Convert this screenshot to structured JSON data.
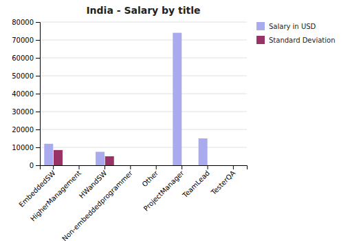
{
  "chart_data": {
    "type": "bar",
    "title": "India - Salary by title",
    "categories": [
      "EmbeddedSW",
      "HigherManagement",
      "HWandSW",
      "Non-embeddedprogrammer",
      "Other",
      "ProjectManager",
      "TeamLead",
      "TesterQA"
    ],
    "series": [
      {
        "name": "Salary in USD",
        "color": "#aaaaee",
        "values": [
          12000,
          0,
          7500,
          0,
          0,
          74000,
          15000,
          0
        ]
      },
      {
        "name": "Standard Deviation",
        "color": "#993366",
        "values": [
          8500,
          0,
          5000,
          0,
          0,
          0,
          0,
          0
        ]
      }
    ],
    "ylim": [
      0,
      80000
    ],
    "yticks": [
      0,
      10000,
      20000,
      30000,
      40000,
      50000,
      60000,
      70000,
      80000
    ],
    "grid": true,
    "legend": "right"
  }
}
